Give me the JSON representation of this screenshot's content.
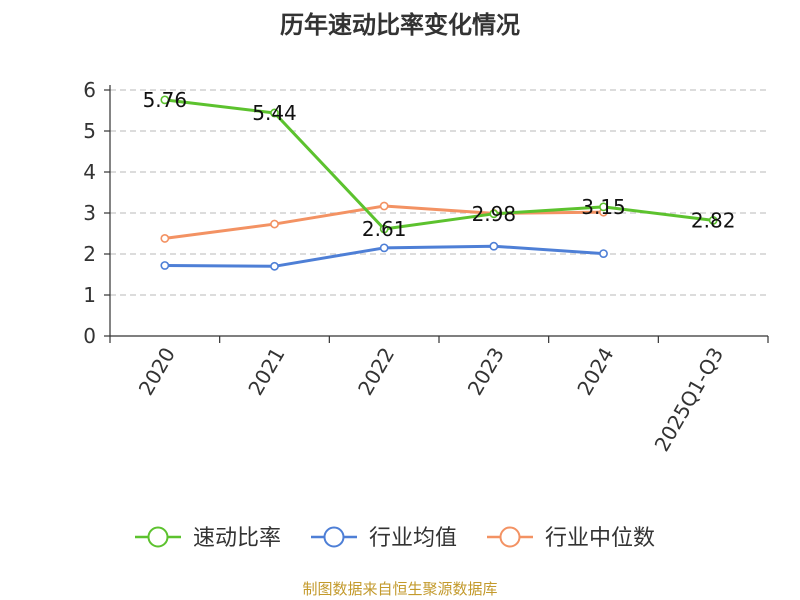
{
  "chart_data": {
    "type": "line",
    "title": "历年速动比率变化情况",
    "categories": [
      "2020",
      "2021",
      "2022",
      "2023",
      "2024",
      "2025Q1-Q3"
    ],
    "ylim": [
      0,
      6
    ],
    "yticks": [
      "0",
      "1",
      "2",
      "3",
      "4",
      "5",
      "6"
    ],
    "grid": true,
    "legend_position": "bottom",
    "series": [
      {
        "name": "速动比率",
        "color": "#5cc22e",
        "values": [
          5.76,
          5.44,
          2.61,
          2.98,
          3.15,
          2.82
        ],
        "labels": [
          "5.76",
          "5.44",
          "2.61",
          "2.98",
          "3.15",
          "2.82"
        ]
      },
      {
        "name": "行业均值",
        "color": "#4e7fd6",
        "values": [
          1.72,
          1.7,
          2.15,
          2.19,
          2.01,
          null
        ]
      },
      {
        "name": "行业中位数",
        "color": "#f39263",
        "values": [
          2.38,
          2.73,
          3.17,
          2.99,
          3.02,
          null
        ]
      }
    ],
    "source": "制图数据来自恒生聚源数据库"
  }
}
